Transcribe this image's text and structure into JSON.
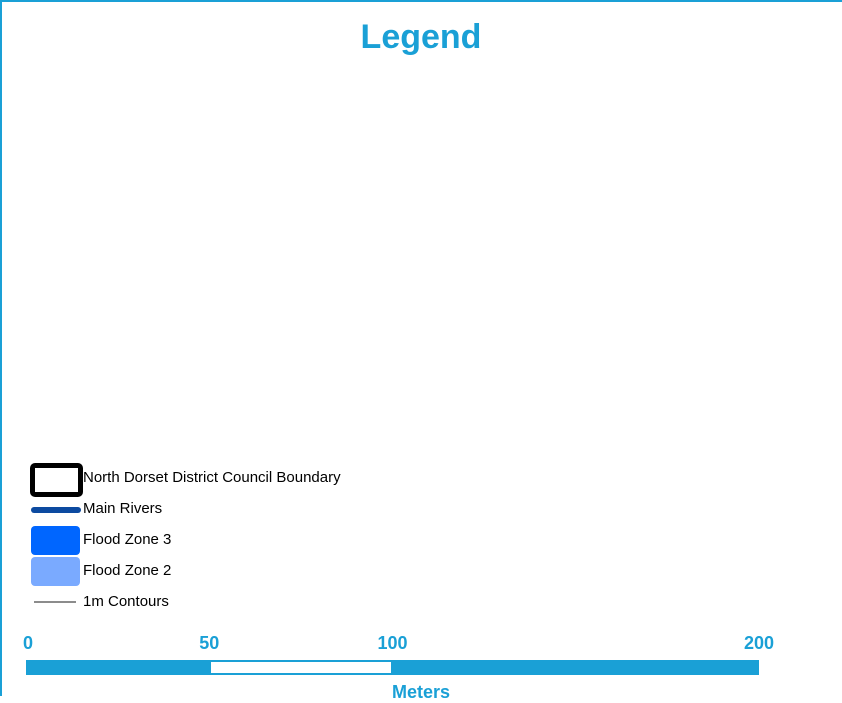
{
  "legend": {
    "title": "Legend",
    "items": [
      {
        "symbol": "boundary-outline",
        "label": "North Dorset District Council Boundary"
      },
      {
        "symbol": "river-line",
        "label": "Main Rivers",
        "color": "#0c4aa0"
      },
      {
        "symbol": "fill-patch",
        "label": "Flood Zone 3",
        "color": "#0066ff"
      },
      {
        "symbol": "fill-patch",
        "label": "Flood Zone 2",
        "color": "#7aaaff"
      },
      {
        "symbol": "contour-line",
        "label": "1m Contours",
        "color": "#8c8c8c"
      }
    ]
  },
  "scale_bar": {
    "ticks": [
      {
        "value": 0,
        "label": "0"
      },
      {
        "value": 50,
        "label": "50"
      },
      {
        "value": 100,
        "label": "100"
      },
      {
        "value": 200,
        "label": "200"
      }
    ],
    "units": "Meters",
    "max": 200,
    "segment_fill": [
      "filled",
      "empty",
      "filled"
    ]
  },
  "colors": {
    "accent": "#1aa0d6",
    "boundary": "#000000"
  }
}
